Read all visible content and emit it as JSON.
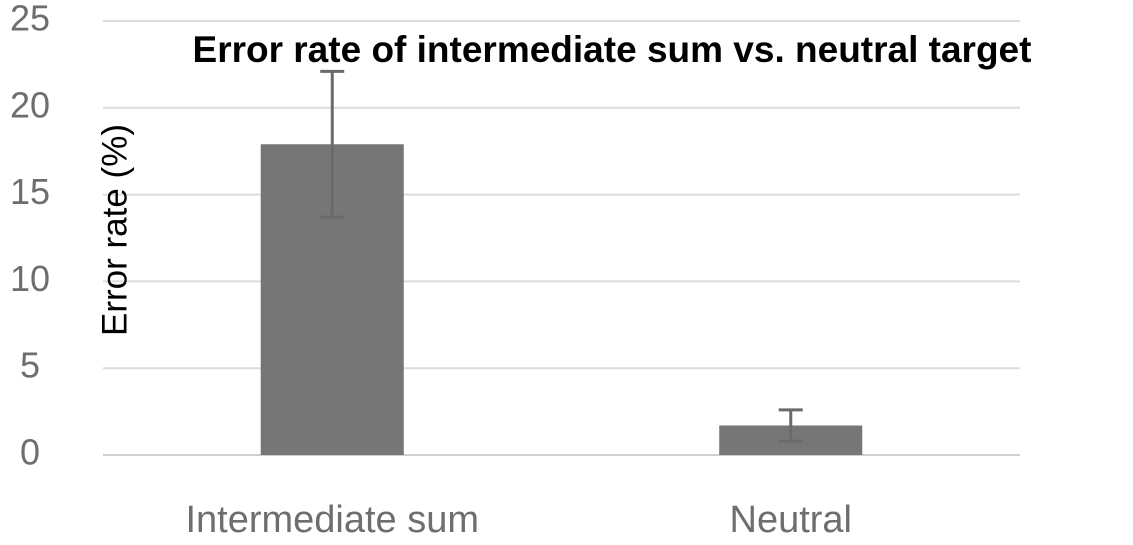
{
  "chart_data": {
    "type": "bar",
    "title": "Error rate of intermediate sum vs. neutral target",
    "y_label": "Error rate (%)",
    "categories": [
      "Intermediate sum",
      "Neutral"
    ],
    "values": [
      17.9,
      1.7
    ],
    "errors": [
      4.2,
      0.9
    ],
    "color": "#767676",
    "ylim": [
      0,
      25
    ],
    "yticks": [
      0,
      5,
      10,
      15,
      20,
      25
    ],
    "grid": true
  }
}
